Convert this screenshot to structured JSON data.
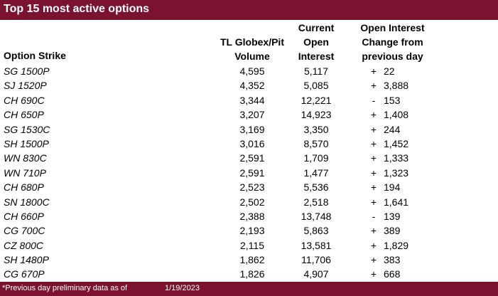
{
  "title": "Top 15 most active options",
  "headers": {
    "strike": "Option Strike",
    "volume": [
      "TL Globex/Pit",
      "Volume"
    ],
    "open_interest": [
      "Current",
      "Open",
      "Interest"
    ],
    "change": [
      "Open Interest",
      "Change from",
      "previous day"
    ]
  },
  "rows": [
    {
      "strike": "SG 1500P",
      "volume": "4,595",
      "oi": "5,117",
      "sign": "+",
      "change": "22"
    },
    {
      "strike": "SJ 1520P",
      "volume": "4,352",
      "oi": "5,085",
      "sign": "+",
      "change": "3,888"
    },
    {
      "strike": "CH 690C",
      "volume": "3,344",
      "oi": "12,221",
      "sign": "-",
      "change": "153"
    },
    {
      "strike": "CH 650P",
      "volume": "3,207",
      "oi": "14,923",
      "sign": "+",
      "change": "1,408"
    },
    {
      "strike": "SG 1530C",
      "volume": "3,169",
      "oi": "3,350",
      "sign": "+",
      "change": "244"
    },
    {
      "strike": "SH 1500P",
      "volume": "3,016",
      "oi": "8,570",
      "sign": "+",
      "change": "1,452"
    },
    {
      "strike": "WN 830C",
      "volume": "2,591",
      "oi": "1,709",
      "sign": "+",
      "change": "1,333"
    },
    {
      "strike": "WN 710P",
      "volume": "2,591",
      "oi": "1,477",
      "sign": "+",
      "change": "1,323"
    },
    {
      "strike": "CH 680P",
      "volume": "2,523",
      "oi": "5,536",
      "sign": "+",
      "change": "194"
    },
    {
      "strike": "SN 1800C",
      "volume": "2,502",
      "oi": "2,518",
      "sign": "+",
      "change": "1,641"
    },
    {
      "strike": "CH 660P",
      "volume": "2,388",
      "oi": "13,748",
      "sign": "-",
      "change": "139"
    },
    {
      "strike": "CG 700C",
      "volume": "2,193",
      "oi": "5,863",
      "sign": "+",
      "change": "389"
    },
    {
      "strike": "CZ 800C",
      "volume": "2,115",
      "oi": "13,581",
      "sign": "+",
      "change": "1,829"
    },
    {
      "strike": "SH 1480P",
      "volume": "1,862",
      "oi": "11,706",
      "sign": "+",
      "change": "383"
    },
    {
      "strike": "CG 670P",
      "volume": "1,826",
      "oi": "4,907",
      "sign": "+",
      "change": "668"
    }
  ],
  "footer": {
    "note": "*Previous day preliminary data as of",
    "date": "1/19/2023"
  },
  "colors": {
    "accent": "#7b1230"
  }
}
